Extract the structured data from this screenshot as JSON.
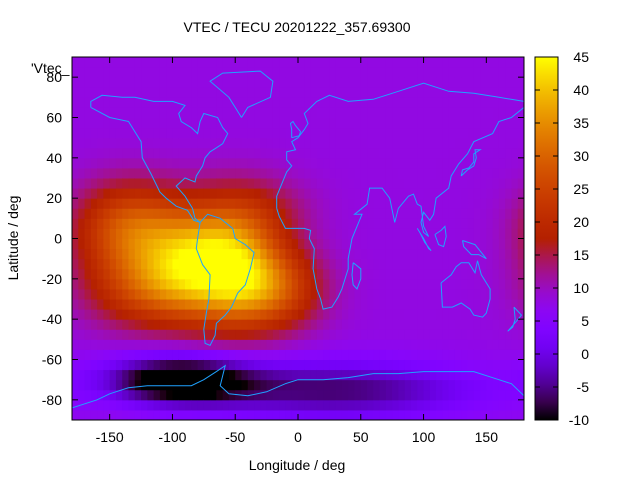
{
  "chart_data": {
    "type": "heatmap",
    "title": "VTEC / TECU 20201222_357.69300",
    "xlabel": "Longitude / deg",
    "ylabel": "Latitude / deg",
    "series_key_label": "'Vtec_",
    "xlim": [
      -180,
      180
    ],
    "ylim": [
      -90,
      90
    ],
    "x_ticks": [
      -150,
      -100,
      -50,
      0,
      50,
      100,
      150
    ],
    "y_ticks": [
      80,
      60,
      40,
      20,
      0,
      -20,
      -40,
      -60,
      -80
    ],
    "colorbar": {
      "min": -10,
      "max": 45,
      "ticks": [
        45,
        40,
        35,
        30,
        25,
        20,
        15,
        10,
        5,
        0,
        -5,
        -10
      ]
    },
    "background_value": 8,
    "features": [
      {
        "name": "equatorial-anomaly-south-america",
        "lon": -55,
        "lat": -12,
        "peak": 42,
        "lon_sigma": 28,
        "lat_sigma": 20
      },
      {
        "name": "equatorial-anomaly-pacific",
        "lon": -135,
        "lat": 5,
        "peak": 30,
        "lon_sigma": 30,
        "lat_sigma": 16
      },
      {
        "name": "pacific-south-band",
        "lon": -120,
        "lat": -25,
        "peak": 24,
        "lon_sigma": 35,
        "lat_sigma": 14
      },
      {
        "name": "south-atlantic-band",
        "lon": -20,
        "lat": -25,
        "peak": 26,
        "lon_sigma": 28,
        "lat_sigma": 14
      },
      {
        "name": "central-band",
        "lon": -95,
        "lat": -10,
        "peak": 24,
        "lon_sigma": 25,
        "lat_sigma": 18
      },
      {
        "name": "north-atlantic",
        "lon": -30,
        "lat": 15,
        "peak": 14,
        "lon_sigma": 30,
        "lat_sigma": 12
      },
      {
        "name": "antarctic-depletion",
        "lon": -95,
        "lat": -70,
        "peak": -15,
        "lon_sigma": 40,
        "lat_sigma": 8
      },
      {
        "name": "south-polar-low",
        "lon": 30,
        "lat": -75,
        "peak": -6,
        "lon_sigma": 80,
        "lat_sigma": 10
      }
    ],
    "coastlines": [
      {
        "name": "north-america",
        "points": [
          [
            -165,
            65
          ],
          [
            -150,
            60
          ],
          [
            -135,
            58
          ],
          [
            -125,
            48
          ],
          [
            -124,
            40
          ],
          [
            -117,
            32
          ],
          [
            -110,
            23
          ],
          [
            -105,
            20
          ],
          [
            -97,
            16
          ],
          [
            -88,
            14
          ],
          [
            -83,
            9
          ],
          [
            -78,
            8
          ],
          [
            -82,
            10
          ],
          [
            -84,
            15
          ],
          [
            -90,
            21
          ],
          [
            -97,
            26
          ],
          [
            -90,
            30
          ],
          [
            -82,
            28
          ],
          [
            -81,
            31
          ],
          [
            -76,
            36
          ],
          [
            -74,
            40
          ],
          [
            -70,
            43
          ],
          [
            -65,
            45
          ],
          [
            -60,
            47
          ],
          [
            -56,
            52
          ],
          [
            -60,
            55
          ],
          [
            -64,
            60
          ],
          [
            -75,
            62
          ],
          [
            -78,
            58
          ],
          [
            -80,
            52
          ],
          [
            -85,
            55
          ],
          [
            -93,
            58
          ],
          [
            -95,
            62
          ],
          [
            -90,
            66
          ],
          [
            -100,
            68
          ],
          [
            -115,
            68
          ],
          [
            -130,
            70
          ],
          [
            -140,
            70
          ],
          [
            -156,
            71
          ],
          [
            -165,
            68
          ],
          [
            -165,
            65
          ]
        ]
      },
      {
        "name": "greenland",
        "points": [
          [
            -45,
            60
          ],
          [
            -50,
            65
          ],
          [
            -55,
            70
          ],
          [
            -70,
            78
          ],
          [
            -60,
            82
          ],
          [
            -30,
            83
          ],
          [
            -20,
            78
          ],
          [
            -22,
            70
          ],
          [
            -40,
            65
          ],
          [
            -45,
            60
          ]
        ]
      },
      {
        "name": "south-america",
        "points": [
          [
            -78,
            8
          ],
          [
            -72,
            12
          ],
          [
            -62,
            10
          ],
          [
            -52,
            5
          ],
          [
            -50,
            0
          ],
          [
            -42,
            -3
          ],
          [
            -35,
            -7
          ],
          [
            -38,
            -15
          ],
          [
            -42,
            -23
          ],
          [
            -48,
            -27
          ],
          [
            -53,
            -34
          ],
          [
            -58,
            -38
          ],
          [
            -65,
            -42
          ],
          [
            -66,
            -48
          ],
          [
            -70,
            -53
          ],
          [
            -74,
            -52
          ],
          [
            -75,
            -45
          ],
          [
            -73,
            -37
          ],
          [
            -71,
            -30
          ],
          [
            -70,
            -18
          ],
          [
            -76,
            -13
          ],
          [
            -81,
            -5
          ],
          [
            -80,
            0
          ],
          [
            -78,
            8
          ]
        ]
      },
      {
        "name": "afro-eurasia",
        "points": [
          [
            -17,
            15
          ],
          [
            -17,
            21
          ],
          [
            -13,
            27
          ],
          [
            -9,
            33
          ],
          [
            -5,
            36
          ],
          [
            -9,
            39
          ],
          [
            -9,
            43
          ],
          [
            -2,
            44
          ],
          [
            -5,
            48
          ],
          [
            0,
            50
          ],
          [
            5,
            54
          ],
          [
            8,
            57
          ],
          [
            5,
            62
          ],
          [
            15,
            68
          ],
          [
            25,
            71
          ],
          [
            40,
            68
          ],
          [
            60,
            69
          ],
          [
            80,
            73
          ],
          [
            100,
            77
          ],
          [
            120,
            73
          ],
          [
            140,
            72
          ],
          [
            160,
            70
          ],
          [
            180,
            68
          ],
          [
            180,
            65
          ],
          [
            170,
            60
          ],
          [
            160,
            58
          ],
          [
            155,
            52
          ],
          [
            140,
            48
          ],
          [
            135,
            42
          ],
          [
            128,
            37
          ],
          [
            122,
            31
          ],
          [
            120,
            25
          ],
          [
            110,
            20
          ],
          [
            108,
            12
          ],
          [
            105,
            9
          ],
          [
            100,
            13
          ],
          [
            98,
            8
          ],
          [
            100,
            3
          ],
          [
            104,
            1
          ],
          [
            100,
            6
          ],
          [
            98,
            16
          ],
          [
            95,
            17
          ],
          [
            92,
            22
          ],
          [
            88,
            21
          ],
          [
            80,
            15
          ],
          [
            77,
            8
          ],
          [
            73,
            20
          ],
          [
            67,
            25
          ],
          [
            57,
            25
          ],
          [
            55,
            17
          ],
          [
            45,
            12
          ],
          [
            51,
            12
          ],
          [
            43,
            0
          ],
          [
            40,
            -10
          ],
          [
            40,
            -15
          ],
          [
            35,
            -25
          ],
          [
            32,
            -29
          ],
          [
            27,
            -34
          ],
          [
            20,
            -35
          ],
          [
            18,
            -30
          ],
          [
            15,
            -25
          ],
          [
            12,
            -15
          ],
          [
            13,
            -5
          ],
          [
            9,
            0
          ],
          [
            10,
            4
          ],
          [
            5,
            5
          ],
          [
            -5,
            5
          ],
          [
            -10,
            5
          ],
          [
            -15,
            11
          ],
          [
            -17,
            15
          ]
        ]
      },
      {
        "name": "madagascar",
        "points": [
          [
            44,
            -12
          ],
          [
            50,
            -15
          ],
          [
            50,
            -20
          ],
          [
            47,
            -25
          ],
          [
            44,
            -23
          ],
          [
            43,
            -18
          ],
          [
            44,
            -12
          ]
        ]
      },
      {
        "name": "great-britain",
        "points": [
          [
            -5,
            50
          ],
          [
            1,
            51
          ],
          [
            2,
            53
          ],
          [
            -2,
            56
          ],
          [
            -4,
            58
          ],
          [
            -6,
            57
          ],
          [
            -5,
            54
          ],
          [
            -5,
            50
          ]
        ]
      },
      {
        "name": "japan",
        "points": [
          [
            130,
            31
          ],
          [
            135,
            34
          ],
          [
            140,
            36
          ],
          [
            142,
            40
          ],
          [
            141,
            44
          ],
          [
            145,
            44
          ],
          [
            140,
            42
          ],
          [
            140,
            38
          ],
          [
            136,
            35
          ],
          [
            131,
            34
          ],
          [
            130,
            31
          ]
        ]
      },
      {
        "name": "borneo",
        "points": [
          [
            109,
            2
          ],
          [
            112,
            -3
          ],
          [
            116,
            -4
          ],
          [
            118,
            1
          ],
          [
            117,
            6
          ],
          [
            114,
            4
          ],
          [
            109,
            2
          ]
        ]
      },
      {
        "name": "sumatra",
        "points": [
          [
            95,
            5
          ],
          [
            100,
            0
          ],
          [
            104,
            -5
          ],
          [
            106,
            -6
          ],
          [
            101,
            -2
          ],
          [
            97,
            3
          ],
          [
            95,
            5
          ]
        ]
      },
      {
        "name": "new-guinea",
        "points": [
          [
            131,
            -1
          ],
          [
            141,
            -3
          ],
          [
            150,
            -10
          ],
          [
            144,
            -8
          ],
          [
            138,
            -8
          ],
          [
            132,
            -4
          ],
          [
            131,
            -1
          ]
        ]
      },
      {
        "name": "australia",
        "points": [
          [
            114,
            -22
          ],
          [
            115,
            -34
          ],
          [
            123,
            -34
          ],
          [
            130,
            -32
          ],
          [
            137,
            -35
          ],
          [
            140,
            -38
          ],
          [
            147,
            -39
          ],
          [
            150,
            -37
          ],
          [
            153,
            -30
          ],
          [
            153,
            -25
          ],
          [
            146,
            -18
          ],
          [
            143,
            -11
          ],
          [
            141,
            -17
          ],
          [
            136,
            -12
          ],
          [
            130,
            -12
          ],
          [
            126,
            -14
          ],
          [
            122,
            -18
          ],
          [
            114,
            -22
          ]
        ]
      },
      {
        "name": "new-zealand",
        "points": [
          [
            172,
            -34
          ],
          [
            178,
            -38
          ],
          [
            174,
            -41
          ],
          [
            167,
            -46
          ],
          [
            171,
            -44
          ],
          [
            173,
            -40
          ],
          [
            172,
            -34
          ]
        ]
      },
      {
        "name": "antarctica",
        "points": [
          [
            -180,
            -84
          ],
          [
            -160,
            -80
          ],
          [
            -150,
            -77
          ],
          [
            -135,
            -74
          ],
          [
            -120,
            -73
          ],
          [
            -100,
            -73
          ],
          [
            -85,
            -73
          ],
          [
            -75,
            -70
          ],
          [
            -65,
            -66
          ],
          [
            -58,
            -63
          ],
          [
            -60,
            -68
          ],
          [
            -62,
            -73
          ],
          [
            -55,
            -77
          ],
          [
            -40,
            -78
          ],
          [
            -25,
            -76
          ],
          [
            -10,
            -72
          ],
          [
            0,
            -70
          ],
          [
            20,
            -70
          ],
          [
            40,
            -69
          ],
          [
            60,
            -67
          ],
          [
            80,
            -67
          ],
          [
            100,
            -66
          ],
          [
            120,
            -66
          ],
          [
            140,
            -66
          ],
          [
            160,
            -70
          ],
          [
            170,
            -72
          ],
          [
            180,
            -78
          ]
        ]
      }
    ]
  }
}
